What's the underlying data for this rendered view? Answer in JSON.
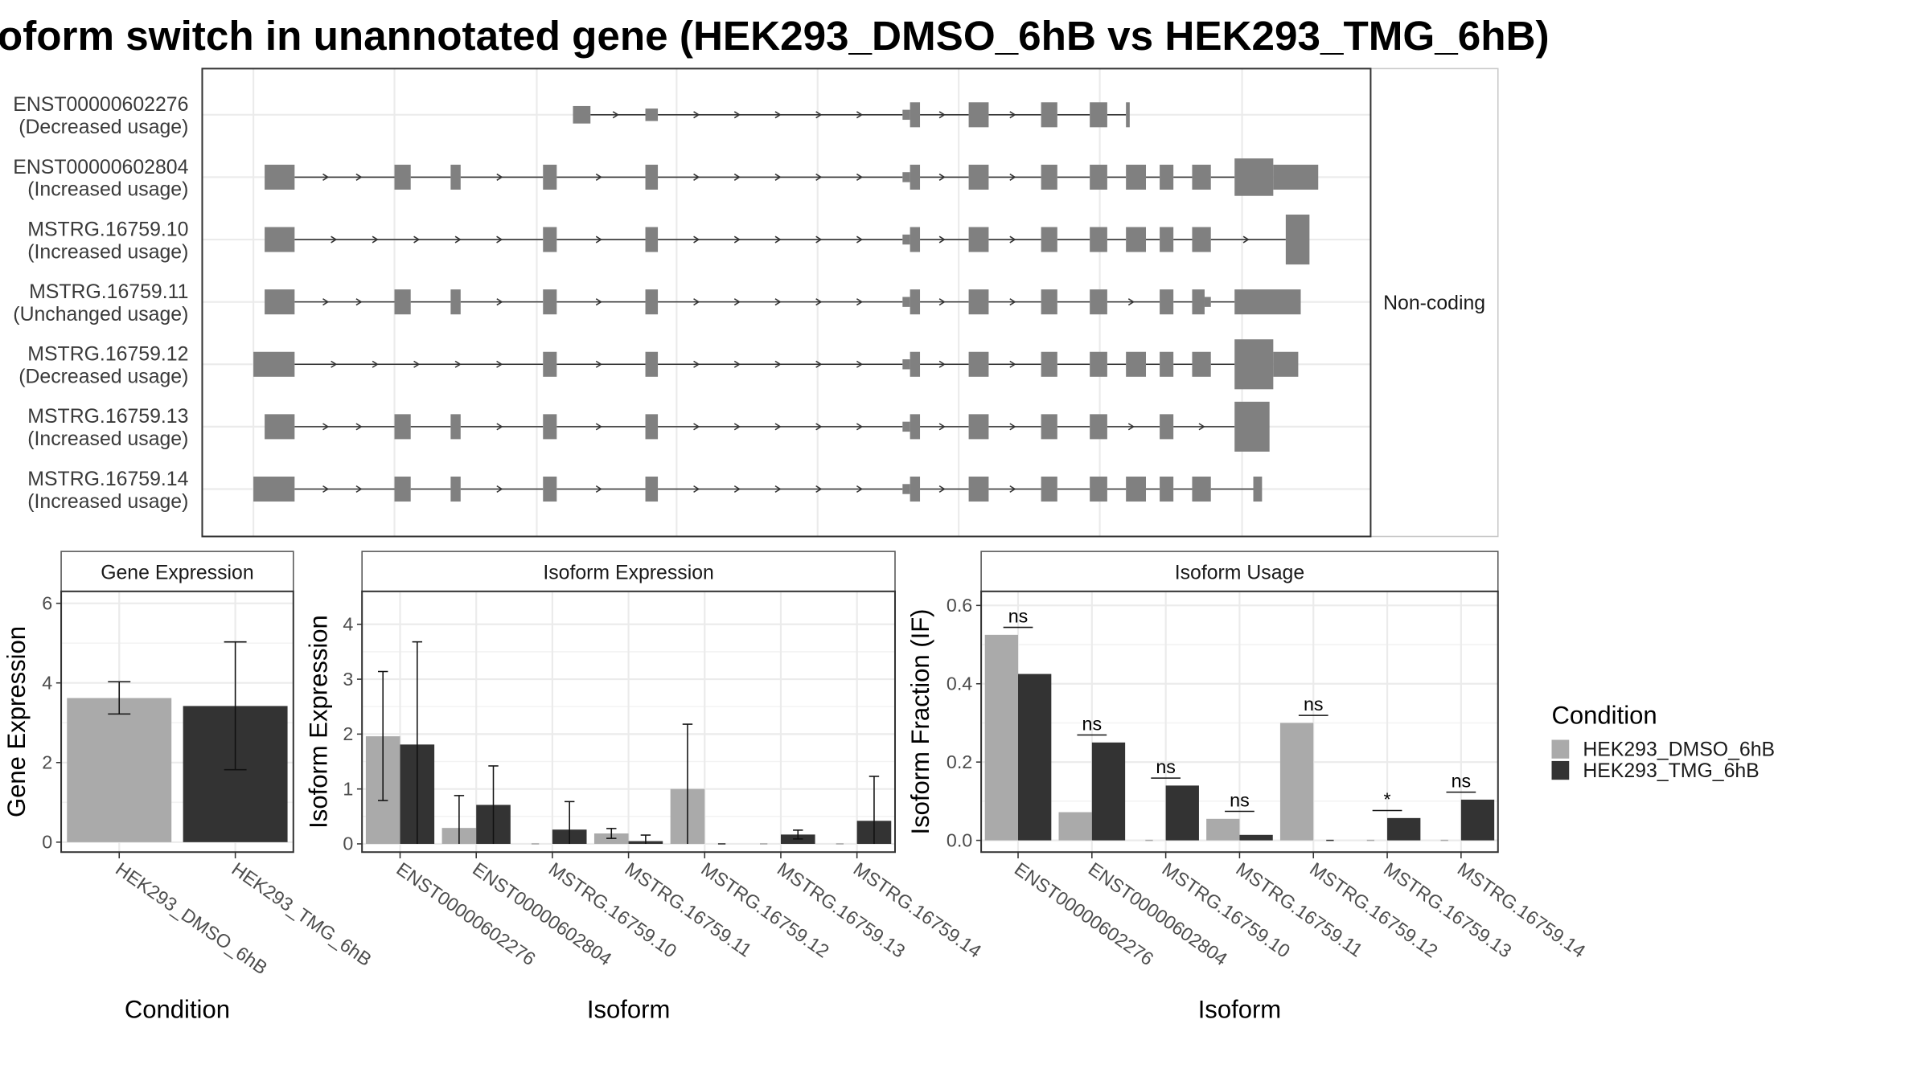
{
  "title": "oform switch in unannotated gene (HEK293_DMSO_6hB vs HEK293_TMG_6hB)",
  "colors": {
    "cond1": "#aaaaaa",
    "cond2": "#333333",
    "exon": "#808080",
    "grid": "#ebebeb",
    "panel_border": "#333333"
  },
  "structure_panel": {
    "strip_label": "Non-coding",
    "transcripts": [
      {
        "id": "ENST00000602276",
        "usage": "(Decreased usage)"
      },
      {
        "id": "ENST00000602804",
        "usage": "(Increased usage)"
      },
      {
        "id": "MSTRG.16759.10",
        "usage": "(Increased usage)"
      },
      {
        "id": "MSTRG.16759.11",
        "usage": "(Unchanged usage)"
      },
      {
        "id": "MSTRG.16759.12",
        "usage": "(Decreased usage)"
      },
      {
        "id": "MSTRG.16759.13",
        "usage": "(Increased usage)"
      },
      {
        "id": "MSTRG.16759.14",
        "usage": "(Increased usage)"
      }
    ]
  },
  "legend": {
    "title": "Condition",
    "items": [
      "HEK293_DMSO_6hB",
      "HEK293_TMG_6hB"
    ]
  },
  "chart_data": [
    {
      "type": "bar",
      "title": "Gene Expression",
      "xlabel": "Condition",
      "ylabel": "Gene Expression",
      "ylim": [
        -0.25,
        6.3
      ],
      "yticks": [
        0,
        2,
        4,
        6
      ],
      "categories": [
        "HEK293_DMSO_6hB",
        "HEK293_TMG_6hB"
      ],
      "values": [
        3.62,
        3.42
      ],
      "error_low": [
        3.22,
        1.82
      ],
      "error_high": [
        4.03,
        5.03
      ]
    },
    {
      "type": "bar",
      "title": "Isoform Expression",
      "xlabel": "Isoform",
      "ylabel": "Isoform Expression",
      "ylim": [
        -0.15,
        4.6
      ],
      "yticks": [
        0,
        1,
        2,
        3,
        4
      ],
      "categories": [
        "ENST00000602276",
        "ENST00000602804",
        "MSTRG.16759.10",
        "MSTRG.16759.11",
        "MSTRG.16759.12",
        "MSTRG.16759.13",
        "MSTRG.16759.14"
      ],
      "series": [
        {
          "name": "HEK293_DMSO_6hB",
          "values": [
            1.96,
            0.29,
            0.0,
            0.19,
            1.0,
            0.0,
            0.0
          ],
          "error_low": [
            0.79,
            0.0,
            0.0,
            0.1,
            0.0,
            0.0,
            0.0
          ],
          "error_high": [
            3.14,
            0.88,
            0.0,
            0.28,
            2.18,
            0.0,
            0.0
          ]
        },
        {
          "name": "HEK293_TMG_6hB",
          "values": [
            1.81,
            0.71,
            0.26,
            0.05,
            0.0,
            0.17,
            0.42
          ],
          "error_low": [
            0.0,
            0.0,
            0.0,
            0.0,
            0.0,
            0.09,
            0.0
          ],
          "error_high": [
            3.68,
            1.42,
            0.77,
            0.16,
            0.0,
            0.25,
            1.23
          ]
        }
      ]
    },
    {
      "type": "bar",
      "title": "Isoform Usage",
      "xlabel": "Isoform",
      "ylabel": "Isoform Fraction (IF)",
      "ylim": [
        -0.03,
        0.636
      ],
      "yticks": [
        "0.0",
        "0.2",
        "0.4",
        "0.6"
      ],
      "categories": [
        "ENST00000602276",
        "ENST00000602804",
        "MSTRG.16759.10",
        "MSTRG.16759.11",
        "MSTRG.16759.12",
        "MSTRG.16759.13",
        "MSTRG.16759.14"
      ],
      "series": [
        {
          "name": "HEK293_DMSO_6hB",
          "values": [
            0.525,
            0.072,
            0.0,
            0.055,
            0.3,
            0.0,
            0.0
          ]
        },
        {
          "name": "HEK293_TMG_6hB",
          "values": [
            0.425,
            0.25,
            0.14,
            0.014,
            0.0,
            0.057,
            0.104
          ]
        }
      ],
      "significance": [
        "ns",
        "ns",
        "ns",
        "ns",
        "ns",
        "*",
        "ns"
      ]
    }
  ]
}
